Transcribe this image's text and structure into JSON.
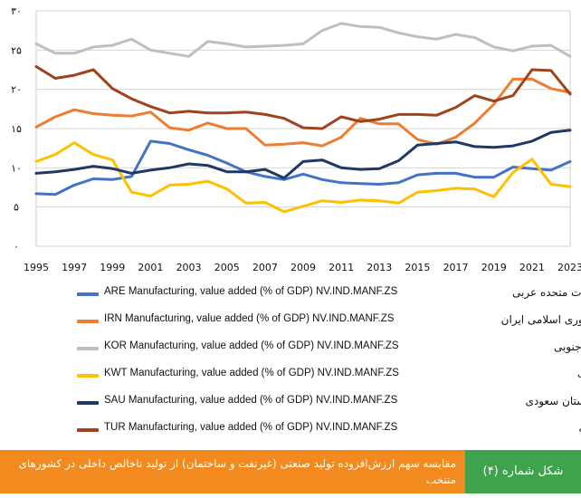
{
  "chart_data": {
    "type": "line",
    "x": [
      1995,
      1996,
      1997,
      1998,
      1999,
      2000,
      2001,
      2002,
      2003,
      2004,
      2005,
      2006,
      2007,
      2008,
      2009,
      2010,
      2011,
      2012,
      2013,
      2014,
      2015,
      2016,
      2017,
      2018,
      2019,
      2020,
      2021,
      2022,
      2023
    ],
    "xticks": [
      "1995",
      "1997",
      "1999",
      "2001",
      "2003",
      "2005",
      "2007",
      "2009",
      "2011",
      "2013",
      "2015",
      "2017",
      "2019",
      "2021",
      "2023"
    ],
    "yticks": [
      {
        "value": 0,
        "label": "۰"
      },
      {
        "value": 5,
        "label": "۵"
      },
      {
        "value": 10,
        "label": "۱۰"
      },
      {
        "value": 15,
        "label": "۱۵"
      },
      {
        "value": 20,
        "label": "۲۰"
      },
      {
        "value": 25,
        "label": "۲۵"
      },
      {
        "value": 30,
        "label": "۳۰"
      }
    ],
    "ylim": [
      0,
      30
    ],
    "grid": true,
    "series": [
      {
        "name": "ARE Manufacturing, value added (% of GDP) NV.IND.MANF.ZS",
        "name_fa": "امارات متحده عربی",
        "color": "#4472c4",
        "values": [
          6.7,
          6.6,
          7.8,
          8.6,
          8.5,
          8.9,
          13.4,
          13.1,
          12.3,
          11.6,
          10.6,
          9.5,
          8.9,
          8.5,
          9.2,
          8.5,
          8.1,
          8.0,
          7.9,
          8.1,
          9.1,
          9.3,
          9.3,
          8.8,
          8.8,
          10.1,
          9.9,
          9.7,
          10.8
        ]
      },
      {
        "name": "IRN Manufacturing, value added (% of GDP) NV.IND.MANF.ZS",
        "name_fa": "جمهوری اسلامی ایران",
        "color": "#ed7d31",
        "values": [
          15.2,
          16.5,
          17.4,
          16.9,
          16.7,
          16.6,
          17.1,
          15.1,
          14.8,
          15.7,
          15.0,
          15.0,
          12.9,
          13.0,
          13.2,
          12.8,
          13.9,
          16.3,
          15.6,
          15.6,
          13.6,
          13.0,
          13.9,
          15.7,
          18.1,
          21.3,
          21.3,
          20.1,
          19.6
        ]
      },
      {
        "name": "KOR Manufacturing, value added (% of GDP) NV.IND.MANF.ZS",
        "name_fa": "کره جنوبی",
        "color": "#bfbfbf",
        "values": [
          25.8,
          24.6,
          24.6,
          25.4,
          25.6,
          26.4,
          25.0,
          24.6,
          24.2,
          26.1,
          25.8,
          25.4,
          25.5,
          25.6,
          25.8,
          27.5,
          28.4,
          28.0,
          27.9,
          27.2,
          26.7,
          26.4,
          27.0,
          26.6,
          25.4,
          24.9,
          25.5,
          25.6,
          24.2
        ]
      },
      {
        "name": "KWT Manufacturing, value added (% of GDP) NV.IND.MANF.ZS",
        "name_fa": "کویت",
        "color": "#ffc000",
        "values": [
          10.8,
          11.7,
          13.2,
          11.7,
          11.0,
          6.9,
          6.4,
          7.8,
          7.9,
          8.3,
          7.3,
          5.5,
          5.6,
          4.4,
          5.1,
          5.8,
          5.6,
          5.9,
          5.8,
          5.5,
          6.9,
          7.1,
          7.4,
          7.3,
          6.3,
          9.4,
          11.1,
          7.9,
          7.6
        ]
      },
      {
        "name": "SAU Manufacturing, value added (% of GDP) NV.IND.MANF.ZS",
        "name_fa": "عربستان سعودی",
        "color": "#1f3864",
        "values": [
          9.3,
          9.5,
          9.8,
          10.2,
          9.9,
          9.3,
          9.7,
          10.0,
          10.5,
          10.3,
          9.5,
          9.5,
          9.8,
          8.7,
          10.8,
          11.0,
          10.0,
          9.8,
          9.9,
          10.9,
          12.9,
          13.1,
          13.3,
          12.7,
          12.6,
          12.8,
          13.4,
          14.5,
          14.8
        ]
      },
      {
        "name": "TUR Manufacturing, value added (% of GDP) NV.IND.MANF.ZS",
        "name_fa": "ترکیه",
        "color": "#a0421c",
        "values": [
          22.9,
          21.4,
          21.8,
          22.5,
          20.1,
          18.8,
          17.8,
          17.0,
          17.2,
          17.0,
          17.0,
          17.1,
          16.8,
          16.3,
          15.1,
          15.0,
          16.5,
          15.9,
          16.2,
          16.8,
          16.8,
          16.7,
          17.7,
          19.2,
          18.5,
          19.2,
          22.5,
          22.4,
          19.4
        ]
      }
    ]
  },
  "caption": {
    "label": "شکل شماره (۴)",
    "title": "مقایسه سهم ارزش‌افزوده تولید صنعتی (غیرنفت و ساختمان) از تولید ناخالص داخلی در کشورهای منتخب",
    "title_color": "#f28a1f",
    "label_color": "#3fa34d"
  }
}
